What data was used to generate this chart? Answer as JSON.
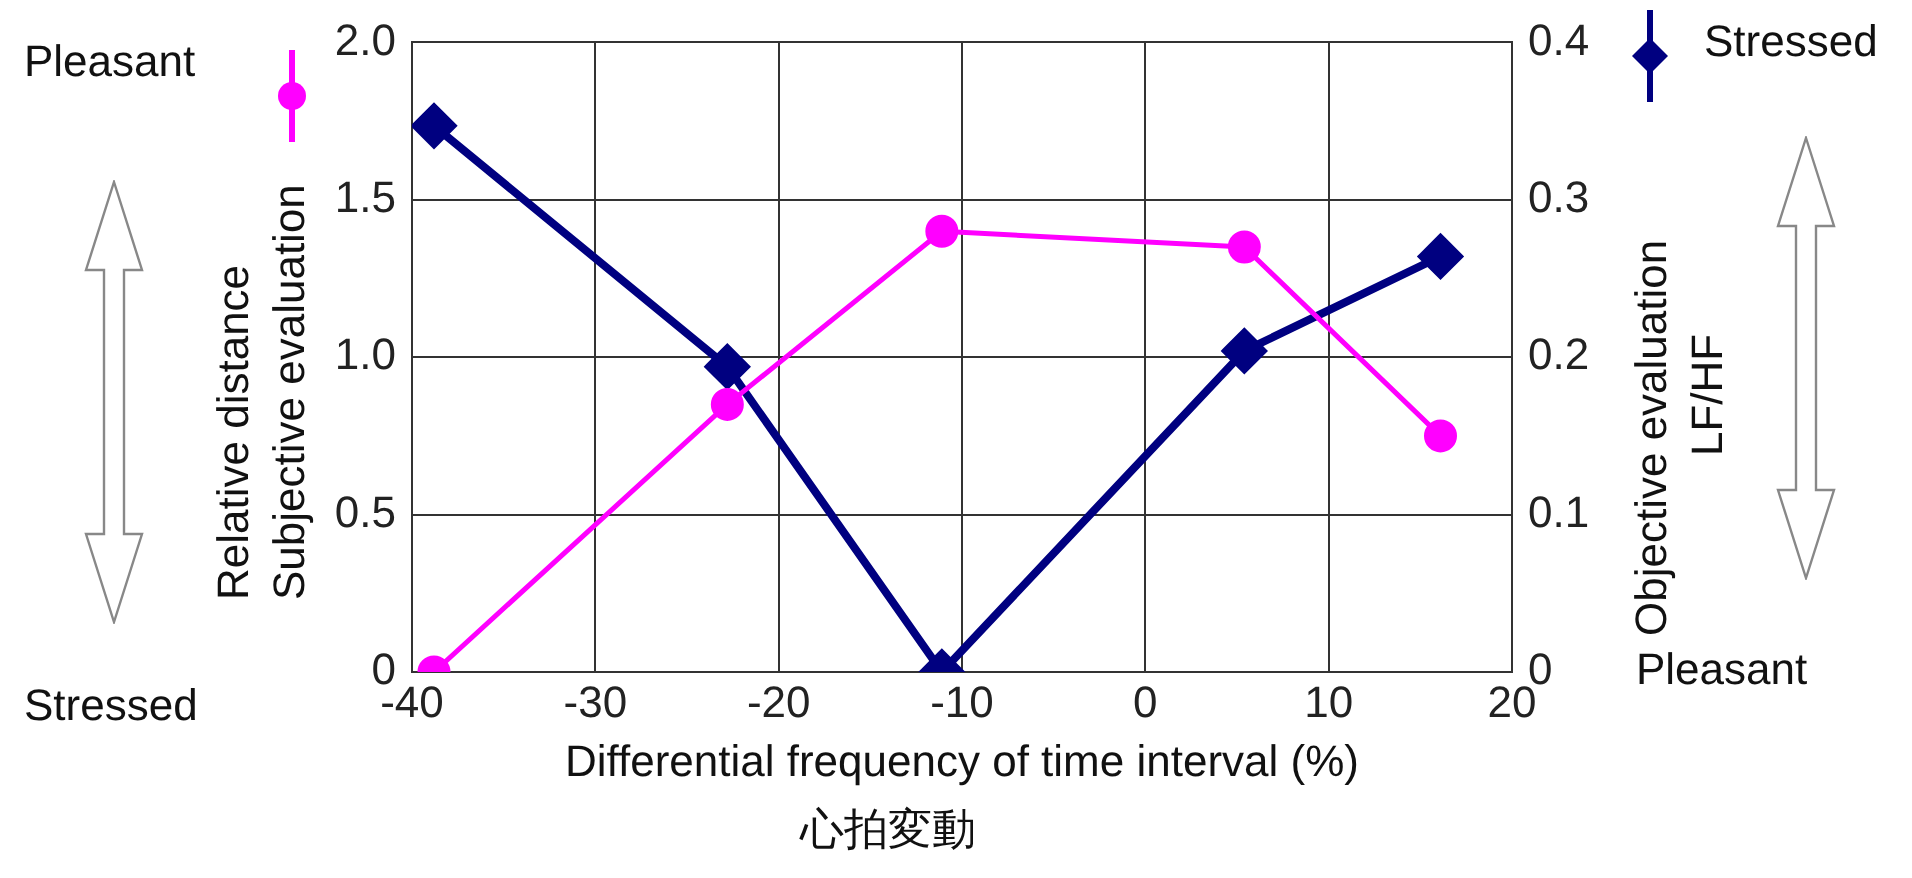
{
  "chart_data": {
    "type": "line",
    "xlabel": "Differential frequency of time interval (%)",
    "ylabel": "Relative distance\nSubjective evaluation",
    "y2label": "Objective evaluation\nLF/HF",
    "xlim": [
      -40,
      20
    ],
    "xticks": [
      -40,
      -30,
      -20,
      -10,
      0,
      10,
      20
    ],
    "ylim": [
      0,
      2
    ],
    "yticks": [
      {
        "value": 0,
        "label": "0"
      },
      {
        "value": 0.5,
        "label": "0.5"
      },
      {
        "value": 1,
        "label": "1.0"
      },
      {
        "value": 1.5,
        "label": "1.5"
      },
      {
        "value": 2,
        "label": "2.0"
      }
    ],
    "y2lim": [
      0,
      0.4
    ],
    "y2ticks": [
      0,
      0.1,
      0.2,
      0.3,
      0.4
    ],
    "grid": true,
    "legend": false,
    "series": [
      {
        "color": "#ff00ff",
        "marker": "circle",
        "x": [
          -38.8,
          -22.8,
          -11.1,
          5.4,
          16.1
        ],
        "values": [
          0,
          0.85,
          1.4,
          1.35,
          0.75
        ]
      },
      {
        "color": "#000080",
        "marker": "diamond",
        "axis": "y2",
        "x": [
          -38.8,
          -22.8,
          -11.1,
          5.4,
          16.1
        ],
        "values": [
          0.347,
          0.194,
          0,
          0.204,
          0.264
        ]
      }
    ],
    "annotations": [
      "Pleasant",
      "Stressed",
      "Stressed",
      "Pleasant",
      "心拍変動"
    ]
  }
}
